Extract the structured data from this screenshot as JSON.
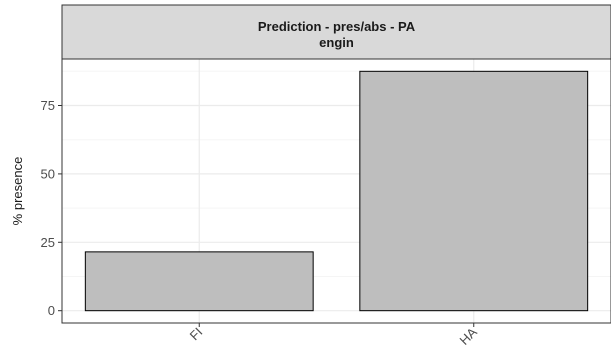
{
  "chart_data": {
    "type": "bar",
    "facet_title": [
      "Prediction - pres/abs - PA",
      "engin"
    ],
    "categories": [
      "FI",
      "HA"
    ],
    "values": [
      21.5,
      87.5
    ],
    "xlabel": "",
    "ylabel": "% presence",
    "ylim": [
      -4.5,
      92
    ],
    "yticks": [
      0,
      25,
      50,
      75
    ],
    "x_tick_rotation": 45,
    "grid": true,
    "legend": "none",
    "colors": {
      "bar_fill": "#bebebe",
      "bar_outline": "#000000",
      "strip_fill": "#d9d9d9",
      "grid_major": "#ebebeb",
      "grid_minor": "#f5f5f5"
    }
  }
}
